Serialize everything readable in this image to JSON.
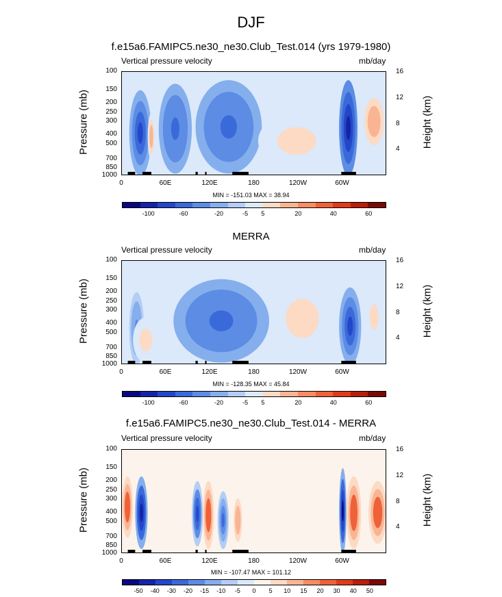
{
  "main_title": "DJF",
  "panels": [
    {
      "title": "f.e15a6.FAMIPC5.ne30_ne30.Club_Test.014 (yrs 1979-1980)",
      "var_label": "Vertical pressure velocity",
      "unit": "mb/day",
      "minmax": "MIN = -151.03  MAX =  38.94"
    },
    {
      "title": "MERRA",
      "var_label": "Vertical pressure velocity",
      "unit": "mb/day",
      "minmax": "MIN = -128.35  MAX =  45.84"
    },
    {
      "title": "f.e15a6.FAMIPC5.ne30_ne30.Club_Test.014 - MERRA",
      "var_label": "Vertical pressure velocity",
      "unit": "mb/day",
      "minmax": "MIN = -107.47  MAX = 101.12"
    }
  ],
  "axes": {
    "ylabel": "Pressure (mb)",
    "y2label": "Height (km)",
    "pressure_ticks": [
      "100",
      "150",
      "200",
      "250",
      "300",
      "400",
      "500",
      "700",
      "850",
      "1000"
    ],
    "height_ticks": [
      "16",
      "12",
      "8",
      "4"
    ],
    "x_ticks": [
      "0",
      "60E",
      "120E",
      "180",
      "120W",
      "60W"
    ]
  },
  "colorbars": {
    "levels_abs": [
      "-100",
      "-60",
      "-20",
      "-5",
      "5",
      "20",
      "40",
      "60"
    ],
    "levels_diff": [
      "-50",
      "-40",
      "-30",
      "-20",
      "-15",
      "-10",
      "-5",
      "0",
      "5",
      "10",
      "15",
      "20",
      "30",
      "40",
      "50"
    ],
    "colors_abs": [
      "#08097f",
      "#1324a8",
      "#2447c9",
      "#3a6ad9",
      "#5c8ce4",
      "#85aeed",
      "#b3cdf5",
      "#dbe9fb",
      "#fcdac4",
      "#f9b593",
      "#f58c62",
      "#ef6139",
      "#e03a1c",
      "#b71e0d",
      "#7a0a05"
    ],
    "colors_diff": [
      "#08097f",
      "#1324a8",
      "#2447c9",
      "#3a6ad9",
      "#5c8ce4",
      "#85aeed",
      "#b3cdf5",
      "#dbe9fb",
      "#fcf3ec",
      "#fcdac4",
      "#f9b593",
      "#f58c62",
      "#ef6139",
      "#e03a1c",
      "#b71e0d",
      "#7a0a05"
    ]
  },
  "chart_data": [
    {
      "type": "heatmap",
      "title": "f.e15a6.FAMIPC5.ne30_ne30.Club_Test.014 (yrs 1979-1980)",
      "subtitle": "Vertical pressure velocity",
      "units": "mb/day",
      "xlabel": "",
      "ylabel": "Pressure (mb)",
      "y2label": "Height (km)",
      "xlim": [
        0,
        360
      ],
      "ylim": [
        1000,
        100
      ],
      "min": -151.03,
      "max": 38.94,
      "contour_levels": [
        -100,
        -80,
        -60,
        -40,
        -20,
        -10,
        -5,
        5,
        10,
        20,
        30,
        40,
        50,
        60
      ],
      "features": [
        {
          "lon": [
            10,
            40
          ],
          "p": [
            150,
            1000
          ],
          "value": -60
        },
        {
          "lon": [
            35,
            45
          ],
          "p": [
            250,
            700
          ],
          "value": 20
        },
        {
          "lon": [
            50,
            95
          ],
          "p": [
            130,
            950
          ],
          "value": -40
        },
        {
          "lon": [
            100,
            190
          ],
          "p": [
            120,
            950
          ],
          "value": -40
        },
        {
          "lon": [
            185,
            290
          ],
          "p": [
            250,
            850
          ],
          "value": 10
        },
        {
          "lon": [
            295,
            320
          ],
          "p": [
            120,
            1000
          ],
          "value": -80
        },
        {
          "lon": [
            325,
            360
          ],
          "p": [
            150,
            600
          ],
          "value": 20
        }
      ]
    },
    {
      "type": "heatmap",
      "title": "MERRA",
      "subtitle": "Vertical pressure velocity",
      "units": "mb/day",
      "xlabel": "",
      "ylabel": "Pressure (mb)",
      "y2label": "Height (km)",
      "xlim": [
        0,
        360
      ],
      "ylim": [
        1000,
        100
      ],
      "min": -128.35,
      "max": 45.84,
      "contour_levels": [
        -100,
        -80,
        -60,
        -40,
        -20,
        -10,
        -5,
        5,
        10,
        20,
        30,
        40,
        50,
        60
      ],
      "features": [
        {
          "lon": [
            10,
            30
          ],
          "p": [
            200,
            1000
          ],
          "value": -20
        },
        {
          "lon": [
            15,
            50
          ],
          "p": [
            350,
            950
          ],
          "value": 10
        },
        {
          "lon": [
            70,
            200
          ],
          "p": [
            150,
            950
          ],
          "value": -40
        },
        {
          "lon": [
            200,
            290
          ],
          "p": [
            150,
            850
          ],
          "value": 10
        },
        {
          "lon": [
            295,
            325
          ],
          "p": [
            180,
            1000
          ],
          "value": -60
        },
        {
          "lon": [
            330,
            355
          ],
          "p": [
            200,
            600
          ],
          "value": 10
        }
      ]
    },
    {
      "type": "heatmap",
      "title": "f.e15a6.FAMIPC5.ne30_ne30.Club_Test.014 - MERRA",
      "subtitle": "Vertical pressure velocity",
      "units": "mb/day",
      "xlabel": "",
      "ylabel": "Pressure (mb)",
      "y2label": "Height (km)",
      "xlim": [
        0,
        360
      ],
      "ylim": [
        1000,
        100
      ],
      "min": -107.47,
      "max": 101.12,
      "contour_levels": [
        -50,
        -40,
        -30,
        -20,
        -15,
        -10,
        -5,
        0,
        5,
        10,
        15,
        20,
        30,
        40,
        50
      ],
      "features": [
        {
          "lon": [
            0,
            15
          ],
          "p": [
            180,
            700
          ],
          "value": 30
        },
        {
          "lon": [
            18,
            35
          ],
          "p": [
            180,
            900
          ],
          "value": -40
        },
        {
          "lon": [
            95,
            110
          ],
          "p": [
            200,
            850
          ],
          "value": -30
        },
        {
          "lon": [
            110,
            125
          ],
          "p": [
            200,
            900
          ],
          "value": 30
        },
        {
          "lon": [
            130,
            145
          ],
          "p": [
            250,
            900
          ],
          "value": -20
        },
        {
          "lon": [
            150,
            165
          ],
          "p": [
            250,
            900
          ],
          "value": 15
        },
        {
          "lon": [
            295,
            305
          ],
          "p": [
            150,
            1000
          ],
          "value": -50
        },
        {
          "lon": [
            305,
            325
          ],
          "p": [
            180,
            900
          ],
          "value": 30
        },
        {
          "lon": [
            335,
            360
          ],
          "p": [
            200,
            800
          ],
          "value": 30
        }
      ]
    }
  ]
}
